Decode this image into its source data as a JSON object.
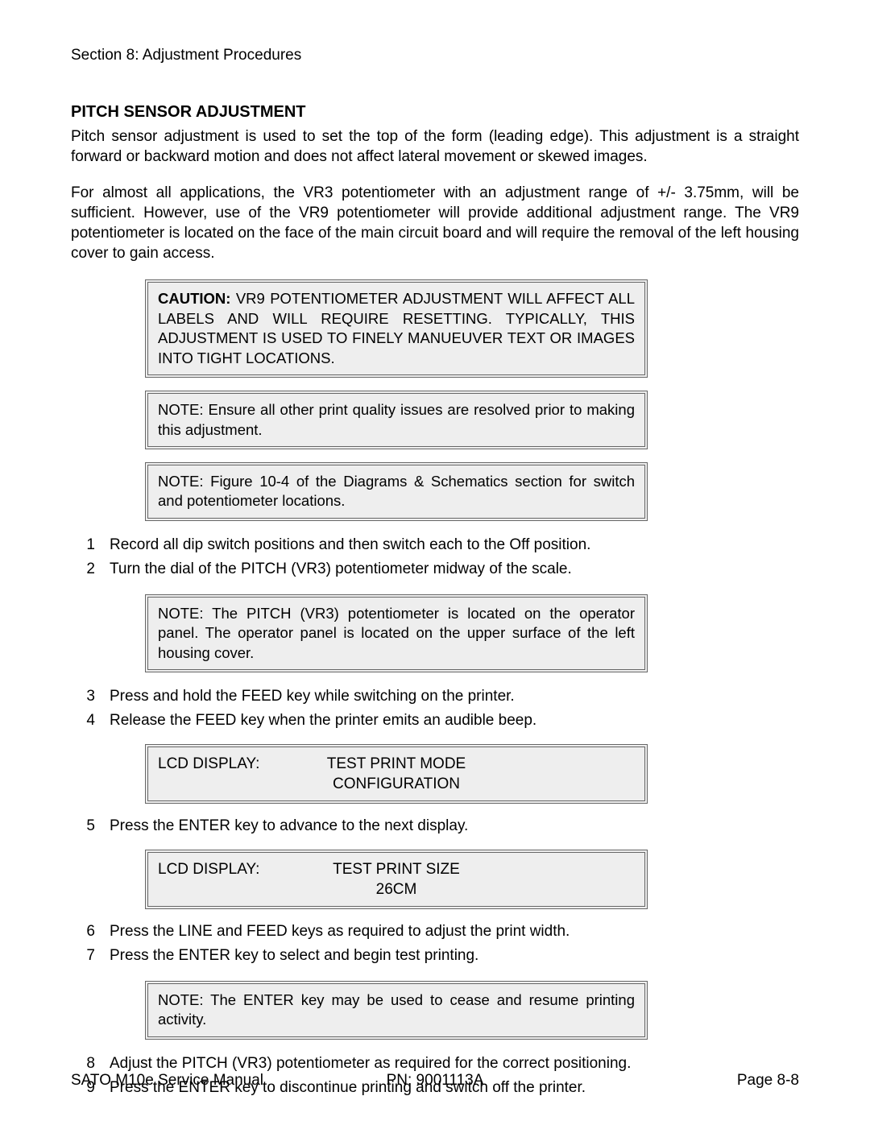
{
  "section_header": "Section 8:   Adjustment Procedures",
  "heading": "PITCH SENSOR ADJUSTMENT",
  "para1": "Pitch sensor adjustment is used to set the top of the form (leading edge). This adjustment is a straight forward or backward motion and does not affect lateral movement or skewed images.",
  "para2": "For almost all applications, the VR3 potentiometer with an adjustment range of +/- 3.75mm, will be sufficient. However, use of the VR9 potentiometer will provide additional adjustment range. The VR9 potentiometer is located on the face of the main circuit board and will require the removal of the left housing cover to gain access.",
  "caution": {
    "label": "CAUTION:",
    "text": "VR9 POTENTIOMETER ADJUSTMENT WILL AFFECT ALL LABELS AND WILL REQUIRE RESETTING. TYPICALLY, THIS ADJUSTMENT IS USED TO FINELY MANUEUVER TEXT OR IMAGES INTO TIGHT LOCATIONS."
  },
  "note1": "NOTE: Ensure all other print quality issues are resolved prior to making this adjustment.",
  "note2": "NOTE: Figure 10-4 of the Diagrams & Schematics section for switch and potentiometer locations.",
  "steps_a": [
    {
      "n": "1",
      "t": "Record all dip switch positions and then switch each to the Off position."
    },
    {
      "n": "2",
      "t": "Turn the dial of the PITCH (VR3) potentiometer midway of the scale."
    }
  ],
  "note3": "NOTE: The PITCH (VR3) potentiometer is located on the operator panel. The operator panel is located on the upper surface of the left housing cover.",
  "steps_b": [
    {
      "n": "3",
      "t": "Press and hold the FEED key while switching on the printer."
    },
    {
      "n": "4",
      "t": "Release the FEED key when the printer emits an audible beep."
    }
  ],
  "lcd1": {
    "label": "LCD DISPLAY:",
    "line1": "TEST PRINT MODE",
    "line2": "CONFIGURATION"
  },
  "steps_c": [
    {
      "n": "5",
      "t": "Press the ENTER key to advance to the next display."
    }
  ],
  "lcd2": {
    "label": "LCD DISPLAY:",
    "line1": "TEST PRINT SIZE",
    "line2": "26CM"
  },
  "steps_d": [
    {
      "n": "6",
      "t": "Press the LINE and FEED keys as required to adjust the print width."
    },
    {
      "n": "7",
      "t": "Press the ENTER key to select and begin test printing."
    }
  ],
  "note4": "NOTE: The ENTER key may be used to cease and resume printing activity.",
  "steps_e": [
    {
      "n": "8",
      "t": "Adjust the PITCH (VR3) potentiometer as required for the correct positioning."
    },
    {
      "n": "9",
      "t": "Press the ENTER key to discontinue printing and switch off the printer."
    }
  ],
  "footer": {
    "left": "SATO M10e Service Manual",
    "center": "PN:    9001113A",
    "right": "Page 8-8"
  }
}
